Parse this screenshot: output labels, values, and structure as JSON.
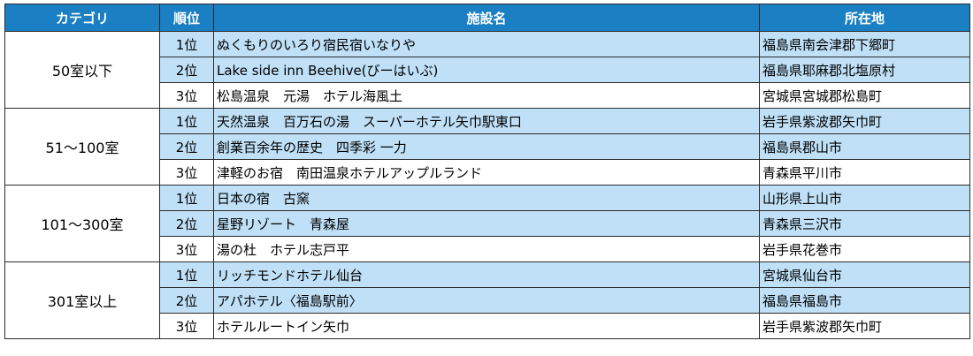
{
  "headers": {
    "category": "カテゴリ",
    "rank": "順位",
    "facility": "施設名",
    "location": "所在地"
  },
  "groups": [
    {
      "category": "50室以下",
      "rows": [
        {
          "rank": "1位",
          "name": "ぬくもりのいろり宿民宿いなりや",
          "location": "福島県南会津郡下郷町"
        },
        {
          "rank": "2位",
          "name": "Lake side inn Beehive(びーはいぶ)",
          "location": "福島県耶麻郡北塩原村"
        },
        {
          "rank": "3位",
          "name": "松島温泉　元湯　ホテル海風土",
          "location": "宮城県宮城郡松島町"
        }
      ]
    },
    {
      "category": "51～100室",
      "rows": [
        {
          "rank": "1位",
          "name": "天然温泉　百万石の湯　スーパーホテル矢巾駅東口",
          "location": "岩手県紫波郡矢巾町"
        },
        {
          "rank": "2位",
          "name": "創業百余年の歴史　四季彩 一力",
          "location": "福島県郡山市"
        },
        {
          "rank": "3位",
          "name": "津軽のお宿　南田温泉ホテルアップルランド",
          "location": "青森県平川市"
        }
      ]
    },
    {
      "category": "101～300室",
      "rows": [
        {
          "rank": "1位",
          "name": "日本の宿　古窯",
          "location": "山形県上山市"
        },
        {
          "rank": "2位",
          "name": "星野リゾート　青森屋",
          "location": "青森県三沢市"
        },
        {
          "rank": "3位",
          "name": "湯の杜　ホテル志戸平",
          "location": "岩手県花巻市"
        }
      ]
    },
    {
      "category": "301室以上",
      "rows": [
        {
          "rank": "1位",
          "name": "リッチモンドホテル仙台",
          "location": "宮城県仙台市"
        },
        {
          "rank": "2位",
          "name": "アパホテル〈福島駅前〉",
          "location": "福島県福島市"
        },
        {
          "rank": "3位",
          "name": "ホテルルートイン矢巾",
          "location": "岩手県紫波郡矢巾町"
        }
      ]
    }
  ],
  "colors": {
    "header_bg": "#1a7fc3",
    "row_blue": "#bfe0f7",
    "row_white": "#ffffff",
    "border": "#2b2b2b"
  }
}
